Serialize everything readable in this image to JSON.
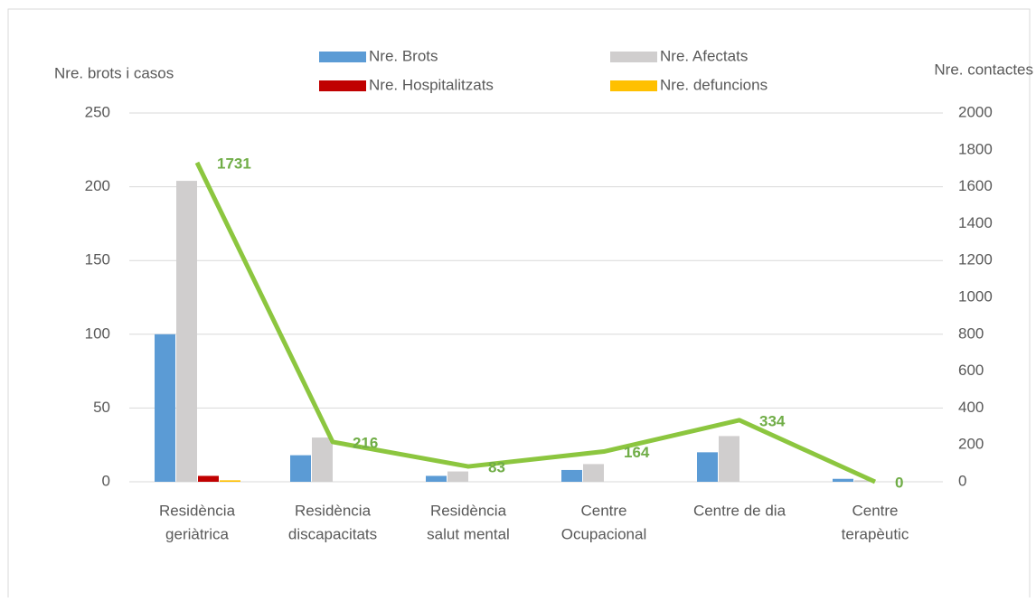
{
  "chart_data": {
    "type": "bar",
    "ylabel": "Nre. brots i casos",
    "y2label": "Nre. contactes",
    "categories": [
      [
        "Residència",
        "geriàtrica"
      ],
      [
        "Residència",
        "discapacitats"
      ],
      [
        "Residència",
        "salut mental"
      ],
      [
        "Centre",
        "Ocupacional"
      ],
      [
        "Centre de dia"
      ],
      [
        "Centre",
        "terapèutic"
      ]
    ],
    "series": [
      {
        "name": "Nre. Brots",
        "color": "#5b9bd5",
        "values": [
          100,
          18,
          4,
          8,
          20,
          2
        ]
      },
      {
        "name": "Nre. Afectats",
        "color": "#d0cece",
        "values": [
          204,
          30,
          7,
          12,
          31,
          1
        ]
      },
      {
        "name": "Nre. Hospitalitzats",
        "color": "#c00000",
        "values": [
          4,
          0,
          0,
          0,
          0,
          0
        ]
      },
      {
        "name": "Nre. defuncions",
        "color": "#ffc000",
        "values": [
          1,
          0,
          0,
          0,
          0,
          0
        ]
      },
      {
        "type": "line",
        "axis": "y2",
        "color": "#8cc63f",
        "label_color": "#70ad47",
        "values": [
          1731,
          216,
          83,
          164,
          334,
          0
        ]
      }
    ],
    "ylim": [
      0,
      250
    ],
    "yticks": [
      0,
      50,
      100,
      150,
      200,
      250
    ],
    "y2lim": [
      0,
      2000
    ],
    "y2ticks": [
      0,
      200,
      400,
      600,
      800,
      1000,
      1200,
      1400,
      1600,
      1800,
      2000
    ],
    "grid": true
  }
}
